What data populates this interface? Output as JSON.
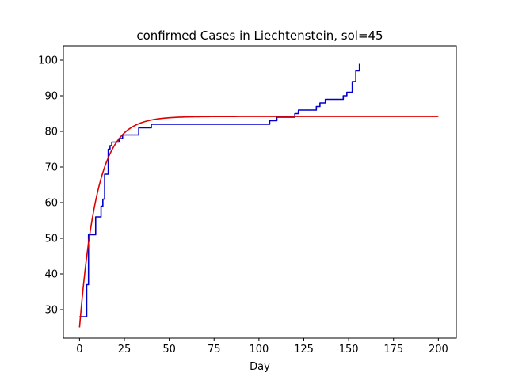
{
  "chart_data": {
    "type": "line",
    "title": "confirmed Cases in Liechtenstein, sol=45",
    "xlabel": "Day",
    "ylabel": "",
    "xlim": [
      -9,
      210
    ],
    "ylim": [
      22,
      104
    ],
    "xticks": [
      0,
      25,
      50,
      75,
      100,
      125,
      150,
      175,
      200
    ],
    "yticks": [
      30,
      40,
      50,
      60,
      70,
      80,
      90,
      100
    ],
    "grid": false,
    "legend": "none",
    "series": [
      {
        "color": "#0000cc",
        "step": true,
        "x": [
          0,
          3,
          4,
          5,
          7,
          9,
          10,
          12,
          13,
          14,
          15,
          16,
          17,
          18,
          20,
          22,
          23,
          24,
          33,
          39,
          40,
          41,
          106,
          109,
          110,
          120,
          122,
          132,
          134,
          137,
          146,
          147,
          148,
          149,
          151,
          152,
          154,
          156
        ],
        "values": [
          28,
          28,
          37,
          51,
          51,
          56,
          56,
          59,
          61,
          68,
          68,
          75,
          76,
          77,
          77,
          78,
          78,
          79,
          81,
          81,
          82,
          82,
          83,
          83,
          84,
          85,
          86,
          87,
          88,
          89,
          89,
          90,
          90,
          91,
          91,
          94,
          97,
          99
        ]
      },
      {
        "color": "#dd0000",
        "step": false,
        "model": {
          "asymptote": 84.2,
          "start": 25.0,
          "rate": 0.102
        },
        "x_range": [
          0,
          200
        ]
      }
    ]
  }
}
